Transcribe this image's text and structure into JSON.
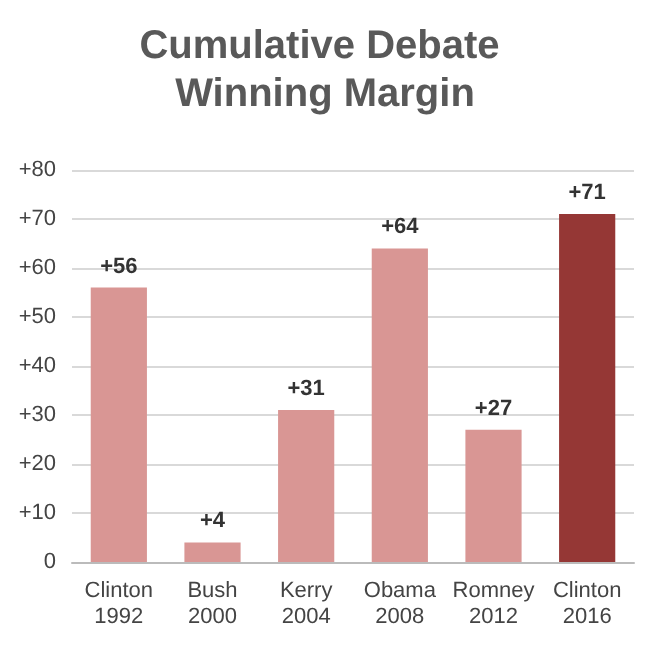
{
  "chart_data": {
    "type": "bar",
    "title": "Cumulative Debate Winning Margin",
    "categories": [
      "Clinton\n1992",
      "Bush\n2000",
      "Kerry\n2004",
      "Obama\n2008",
      "Romney\n2012",
      "Clinton\n2016"
    ],
    "values": [
      56,
      4,
      31,
      64,
      27,
      71
    ],
    "colors": [
      "#d99694",
      "#d99694",
      "#d99694",
      "#d99694",
      "#d99694",
      "#953735"
    ],
    "value_labels": [
      "+56",
      "+4",
      "+31",
      "+64",
      "+27",
      "+71"
    ],
    "ylim": [
      0,
      80
    ],
    "yticks": [
      0,
      {
        "value": 10,
        "label": "+10"
      },
      {
        "value": 20,
        "label": "+20"
      },
      {
        "value": 30,
        "label": "+30"
      },
      {
        "value": 40,
        "label": "+40"
      },
      {
        "value": 50,
        "label": "+50"
      },
      {
        "value": 60,
        "label": "+60"
      },
      {
        "value": 70,
        "label": "+70"
      },
      {
        "value": 80,
        "label": "+80"
      }
    ],
    "grid": "y"
  }
}
